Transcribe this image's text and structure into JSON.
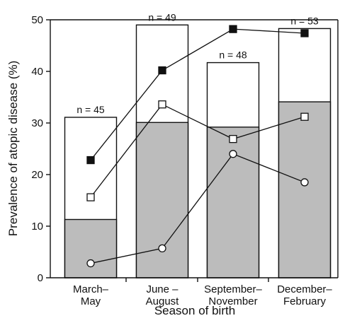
{
  "chart_data": {
    "type": "bar",
    "title": "",
    "xlabel": "Season of birth",
    "ylabel": "Prevalence of atopic disease (%)",
    "ylim": [
      0,
      50
    ],
    "yticks": [
      0,
      10,
      20,
      30,
      40,
      50
    ],
    "grid": false,
    "categories": [
      [
        "March–",
        "May"
      ],
      [
        "June –",
        "August"
      ],
      [
        "September–",
        "November"
      ],
      [
        "December–",
        "February"
      ]
    ],
    "n_labels": [
      "n = 45",
      "n = 49",
      "n = 48",
      "n = 53"
    ],
    "bar_total": [
      31.1,
      49.0,
      41.7,
      48.3
    ],
    "bar_shaded": [
      11.3,
      30.1,
      29.2,
      34.1
    ],
    "line_series": [
      {
        "marker": "filled-square",
        "values": [
          22.8,
          40.2,
          48.2,
          47.4
        ]
      },
      {
        "marker": "open-square",
        "values": [
          15.6,
          33.6,
          26.9,
          31.2
        ]
      },
      {
        "marker": "open-circle",
        "values": [
          2.8,
          5.7,
          24.0,
          18.5
        ]
      }
    ],
    "colors": {
      "shaded": "#bcbcbc",
      "outline": "#111111",
      "open_fill": "#ffffff"
    }
  }
}
